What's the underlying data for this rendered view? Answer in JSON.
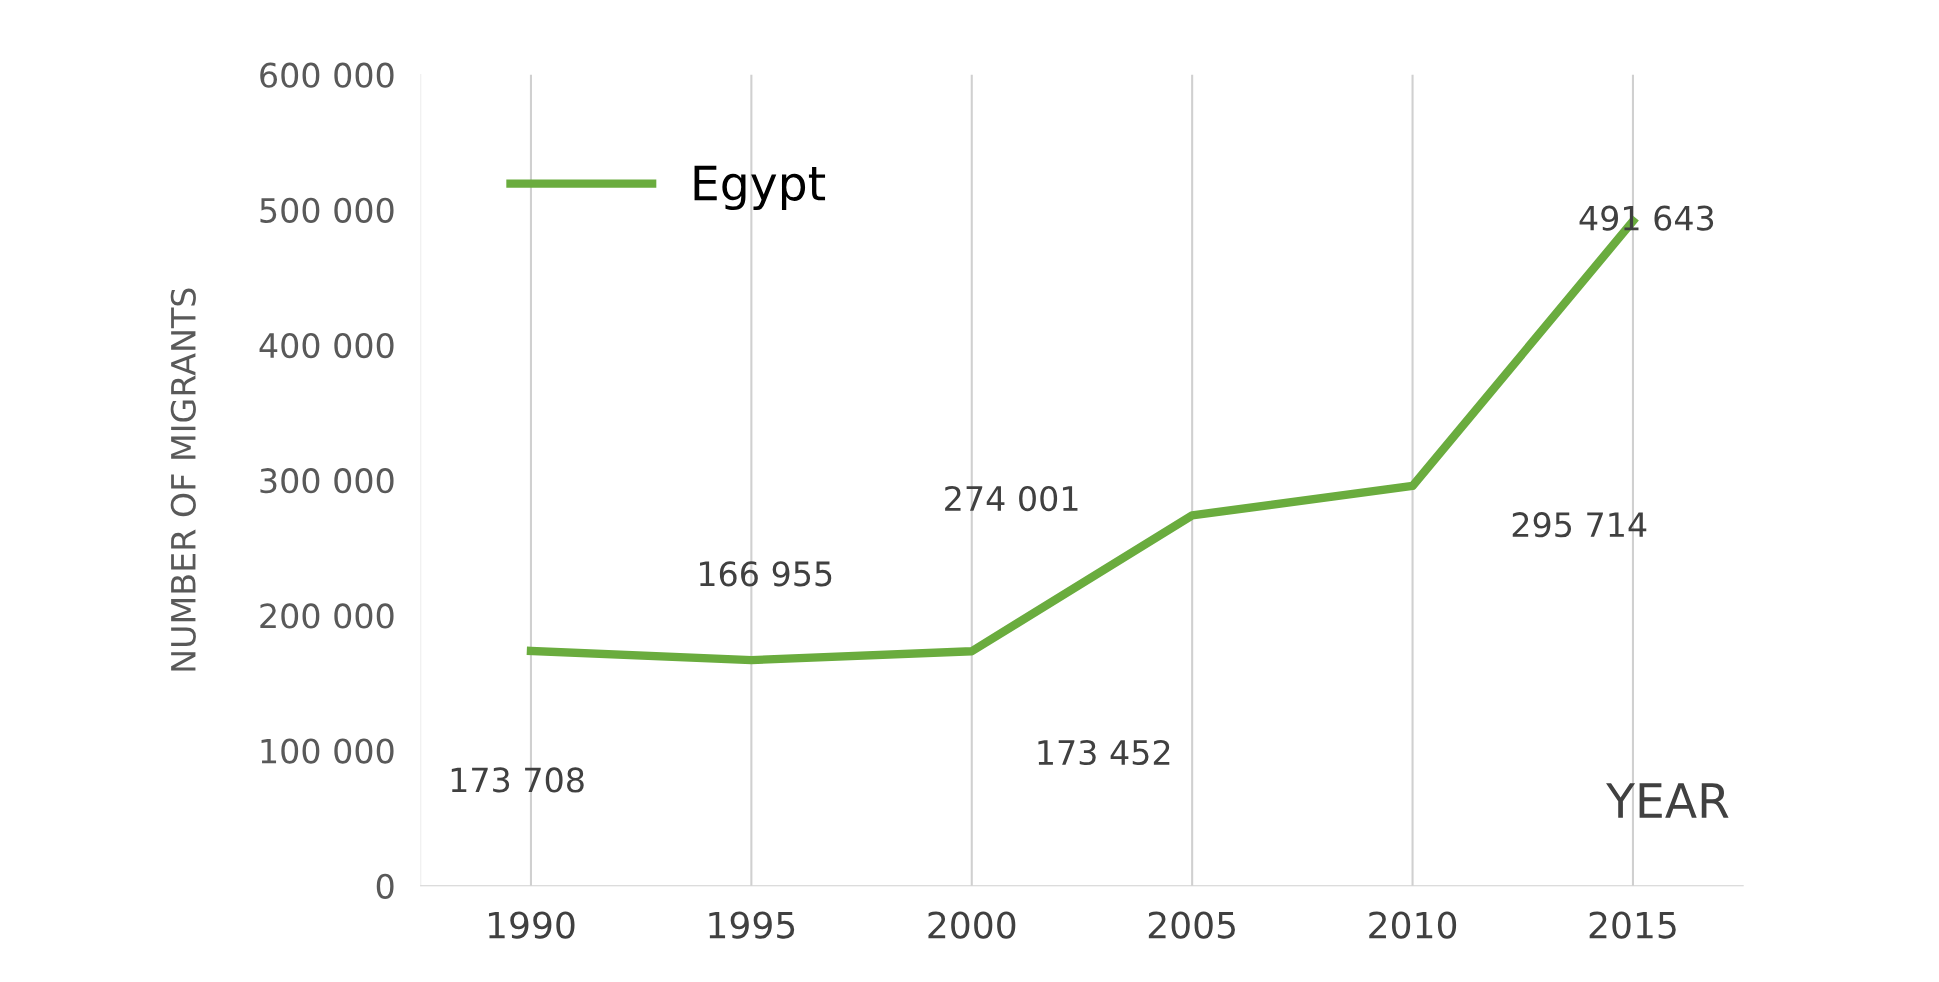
{
  "chart_data": {
    "type": "line",
    "xlabel": "YEAR",
    "ylabel": "NUMBER OF MIGRANTS",
    "categories": [
      "1990",
      "1995",
      "2000",
      "2005",
      "2010",
      "2015"
    ],
    "series": [
      {
        "name": "Egypt",
        "color": "#6aac3e",
        "values": [
          173708,
          166955,
          173452,
          274001,
          295714,
          491643
        ]
      }
    ],
    "value_labels": [
      "173 708",
      "166 955",
      "173 452",
      "274 001",
      "295 714",
      "491 643"
    ],
    "ylim": [
      0,
      600000
    ],
    "yticks": [
      {
        "value": 0,
        "label": "0"
      },
      {
        "value": 100000,
        "label": "100 000"
      },
      {
        "value": 200000,
        "label": "200 000"
      },
      {
        "value": 300000,
        "label": "300 000"
      },
      {
        "value": 400000,
        "label": "400 000"
      },
      {
        "value": 500000,
        "label": "500 000"
      },
      {
        "value": 600000,
        "label": "600 000"
      }
    ],
    "grid": "x",
    "legend": "top left",
    "marker": "none",
    "line_style": "solid"
  }
}
